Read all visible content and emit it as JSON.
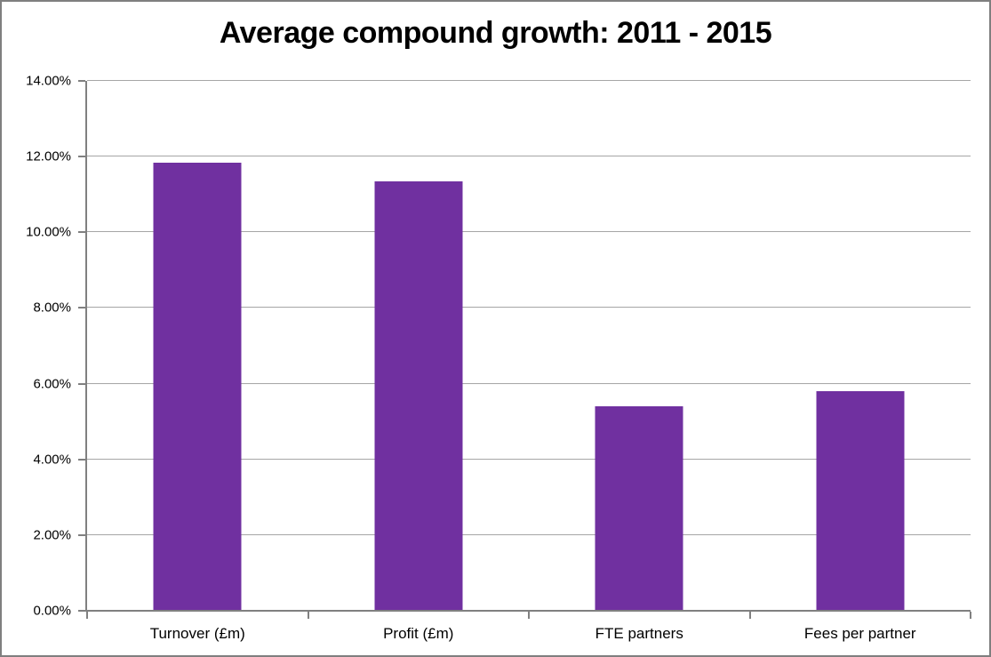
{
  "chart_data": {
    "type": "bar",
    "title": "Average compound growth: 2011 - 2015",
    "categories": [
      "Turnover (£m)",
      "Profit (£m)",
      "FTE partners",
      "Fees per partner"
    ],
    "values": [
      11.85,
      11.35,
      5.4,
      5.8
    ],
    "value_unit": "%",
    "xlabel": "",
    "ylabel": "",
    "ylim": [
      0,
      14
    ],
    "ytick_step": 2,
    "ytick_labels": [
      "0.00%",
      "2.00%",
      "4.00%",
      "6.00%",
      "8.00%",
      "10.00%",
      "12.00%",
      "14.00%"
    ],
    "grid": true,
    "legend": false,
    "colors": {
      "bar": "#7030A0",
      "gridline": "#A6A6A6",
      "axis": "#808080",
      "frame_border": "#7F7F7F",
      "text": "#000000",
      "background": "#FFFFFF"
    }
  }
}
